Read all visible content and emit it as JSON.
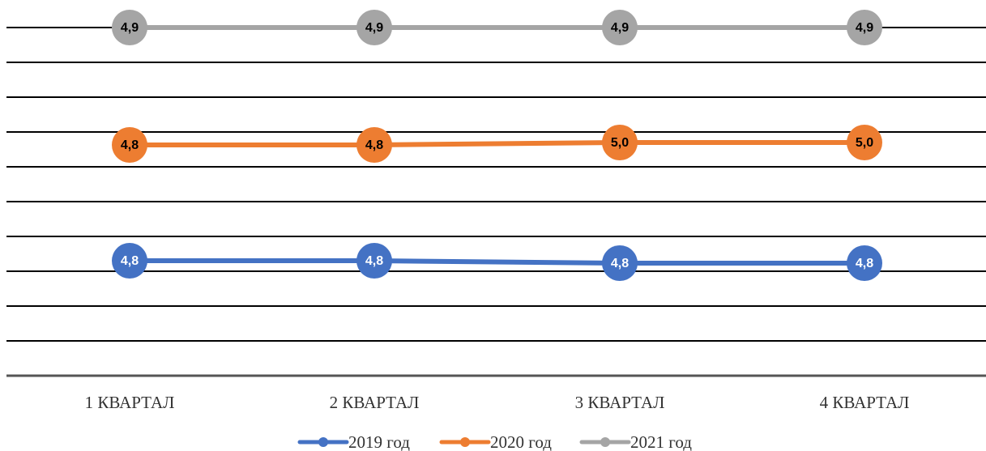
{
  "chart_data": {
    "type": "line",
    "categories": [
      "1 КВАРТАЛ",
      "2 КВАРТАЛ",
      "3 КВАРТАЛ",
      "4 КВАРТАЛ"
    ],
    "series": [
      {
        "name": "2019 год",
        "values": [
          4.8,
          4.8,
          4.8,
          4.8
        ],
        "labels": [
          "4,8",
          "4,8",
          "4,8",
          "4,8"
        ],
        "color": "#4472C4",
        "label_color": "#ffffff"
      },
      {
        "name": "2020 год",
        "values": [
          4.8,
          4.8,
          5.0,
          5.0
        ],
        "labels": [
          "4,8",
          "4,8",
          "5,0",
          "5,0"
        ],
        "color": "#ED7D31",
        "label_color": "#000000"
      },
      {
        "name": "2021 год",
        "values": [
          4.9,
          4.9,
          4.9,
          4.9
        ],
        "labels": [
          "4,9",
          "4,9",
          "4,9",
          "4,9"
        ],
        "color": "#A5A5A5",
        "label_color": "#000000"
      }
    ],
    "grid": true,
    "legend_position": "bottom",
    "title": "",
    "xlabel": "",
    "ylabel": ""
  }
}
